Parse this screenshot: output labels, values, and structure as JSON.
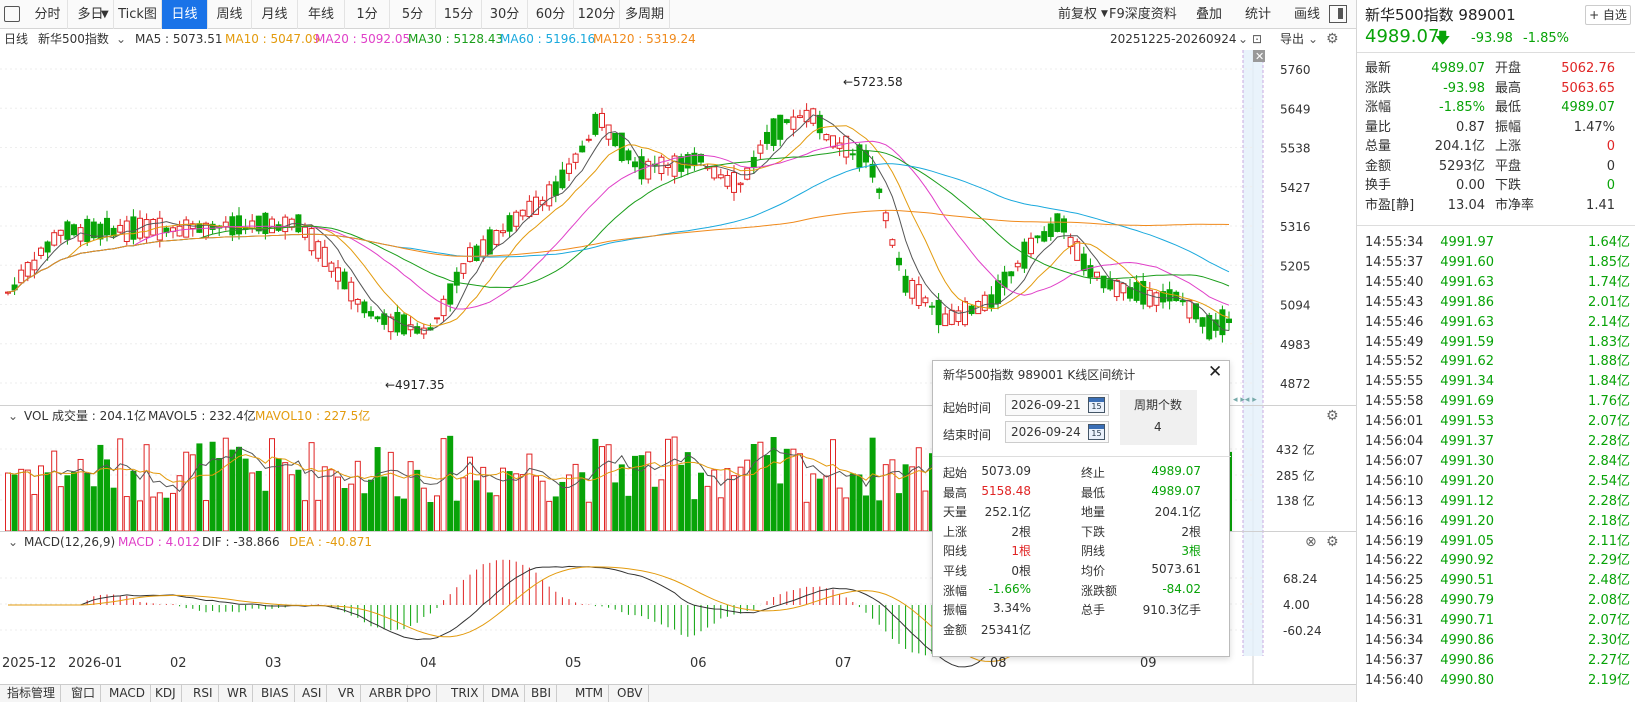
{
  "toolbar": {
    "items": [
      "分时",
      "多日",
      "Tick图",
      "日线",
      "周线",
      "月线",
      "年线",
      "1分",
      "5分",
      "15分",
      "30分",
      "60分",
      "120分",
      "多周期"
    ],
    "active": "日线",
    "right_items": [
      "前复权",
      "F9深度资料",
      "叠加",
      "统计",
      "画线"
    ]
  },
  "infobar": {
    "period": "日线",
    "name": "新华500指数",
    "ma5": "MA5 : 5073.51",
    "ma10": "MA10 : 5047.09",
    "ma20": "MA20 : 5092.05",
    "ma30": "MA30 : 5128.43",
    "ma60": "MA60 : 5196.16",
    "ma120": "MA120 : 5319.24",
    "range": "20251225-20260924",
    "export": "导出"
  },
  "main_chart": {
    "y_ticks": [
      "5760",
      "5649",
      "5538",
      "5427",
      "5316",
      "5205",
      "5094",
      "4983",
      "4872"
    ],
    "high_label": "←5723.58",
    "low_label": "←4917.35"
  },
  "vol_panel": {
    "title": "VOL 成交量 : 204.1亿",
    "mavol5": "MAVOL5 : 232.4亿",
    "mavol10": "MAVOL10 : 227.5亿",
    "y_ticks": [
      "432 亿",
      "285 亿",
      "138 亿"
    ]
  },
  "macd_panel": {
    "title": "MACD(12,26,9)",
    "macd": "MACD : 4.012",
    "dif": "DIF : -38.866",
    "dea": "DEA : -40.871",
    "y_ticks": [
      "68.24",
      "4.00",
      "-60.24"
    ]
  },
  "x_axis": [
    "2025-12",
    "2026-01",
    "02",
    "03",
    "04",
    "05",
    "06",
    "07",
    "08",
    "09"
  ],
  "bottom_tabs": [
    "指标管理",
    "窗口",
    "MACD",
    "KDJ",
    "RSI",
    "WR",
    "BIAS",
    "ASI",
    "VR",
    "ARBR",
    "DPO",
    "TRIX",
    "DMA",
    "BBI",
    "MTM",
    "OBV"
  ],
  "dialog": {
    "title": "新华500指数 989001 K线区间统计",
    "start_label": "起始时间",
    "start_value": "2026-09-21",
    "end_label": "结束时间",
    "end_value": "2026-09-24",
    "period_label": "周期个数",
    "period_value": "4",
    "cal_text": "15",
    "stats": [
      [
        "起始",
        "5073.09",
        "终止",
        "4989.07"
      ],
      [
        "最高",
        "5158.48",
        "最低",
        "4989.07"
      ],
      [
        "天量",
        "252.1亿",
        "地量",
        "204.1亿"
      ],
      [
        "上涨",
        "2根",
        "下跌",
        "2根"
      ],
      [
        "阳线",
        "1根",
        "阴线",
        "3根"
      ],
      [
        "平线",
        "0根",
        "均价",
        "5073.61"
      ],
      [
        "涨幅",
        "-1.66%",
        "涨跌额",
        "-84.02"
      ],
      [
        "振幅",
        "3.34%",
        "总手",
        "910.3亿手"
      ],
      [
        "金额",
        "25341亿",
        "",
        ""
      ]
    ]
  },
  "quote": {
    "title": "新华500指数 989001",
    "add_btn": "+ 自选",
    "price": "4989.07",
    "change": "-93.98",
    "pct": "-1.85%",
    "stats": [
      [
        "最新",
        "4989.07",
        "开盘",
        "5062.76"
      ],
      [
        "涨跌",
        "-93.98",
        "最高",
        "5063.65"
      ],
      [
        "涨幅",
        "-1.85%",
        "最低",
        "4989.07"
      ],
      [
        "量比",
        "0.87",
        "振幅",
        "1.47%"
      ],
      [
        "总量",
        "204.1亿",
        "上涨",
        "0"
      ],
      [
        "金额",
        "5293亿",
        "平盘",
        "0"
      ],
      [
        "换手",
        "0.00",
        "下跌",
        "0"
      ],
      [
        "市盈[静]",
        "13.04",
        "市净率",
        "1.41"
      ]
    ],
    "ticks": [
      [
        "14:55:34",
        "4991.97",
        "1.64亿"
      ],
      [
        "14:55:37",
        "4991.60",
        "1.85亿"
      ],
      [
        "14:55:40",
        "4991.63",
        "1.74亿"
      ],
      [
        "14:55:43",
        "4991.86",
        "2.01亿"
      ],
      [
        "14:55:46",
        "4991.63",
        "2.14亿"
      ],
      [
        "14:55:49",
        "4991.59",
        "1.83亿"
      ],
      [
        "14:55:52",
        "4991.62",
        "1.88亿"
      ],
      [
        "14:55:55",
        "4991.34",
        "1.84亿"
      ],
      [
        "14:55:58",
        "4991.69",
        "1.76亿"
      ],
      [
        "14:56:01",
        "4991.53",
        "2.07亿"
      ],
      [
        "14:56:04",
        "4991.37",
        "2.28亿"
      ],
      [
        "14:56:07",
        "4991.30",
        "2.84亿"
      ],
      [
        "14:56:10",
        "4991.20",
        "2.54亿"
      ],
      [
        "14:56:13",
        "4991.12",
        "2.28亿"
      ],
      [
        "14:56:16",
        "4991.20",
        "2.18亿"
      ],
      [
        "14:56:19",
        "4991.05",
        "2.11亿"
      ],
      [
        "14:56:22",
        "4990.92",
        "2.29亿"
      ],
      [
        "14:56:25",
        "4990.51",
        "2.48亿"
      ],
      [
        "14:56:28",
        "4990.79",
        "2.08亿"
      ],
      [
        "14:56:31",
        "4990.71",
        "2.07亿"
      ],
      [
        "14:56:34",
        "4990.86",
        "2.30亿"
      ],
      [
        "14:56:37",
        "4990.86",
        "2.27亿"
      ],
      [
        "14:56:40",
        "4990.80",
        "2.19亿"
      ]
    ]
  }
}
